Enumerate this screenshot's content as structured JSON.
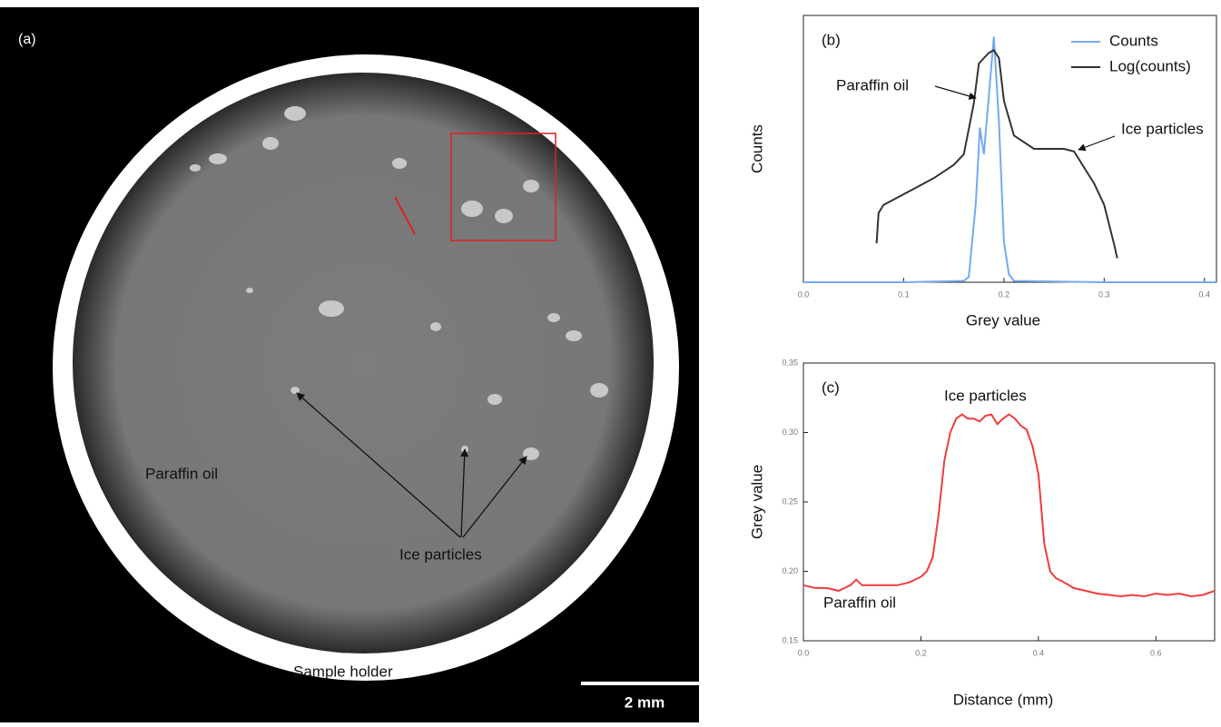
{
  "image_panel": {
    "panel_label": "(a)",
    "labels": [
      "Paraffin oil",
      "Ice particles",
      "Sample holder"
    ],
    "scale_bar": "2 mm"
  },
  "chart_data": [
    {
      "type": "line",
      "panel_label": "(b)",
      "xlabel": "Grey value",
      "ylabel": "Counts",
      "xlim": [
        0,
        0.412
      ],
      "ylim": [
        0,
        1
      ],
      "xticks": [
        {
          "value": 0,
          "label": "0.0"
        },
        0.1,
        0.2,
        0.3,
        0.4
      ],
      "legend": "upper right",
      "annotations": [
        "Paraffin oil",
        "Ice particles"
      ],
      "series": [
        {
          "name": "Counts",
          "color": "#74a9f0",
          "x": [
            0,
            0.1,
            0.16,
            0.165,
            0.172,
            0.176,
            0.18,
            0.185,
            0.19,
            0.195,
            0.2,
            0.205,
            0.21,
            0.3,
            0.412
          ],
          "values": [
            0,
            0,
            0.005,
            0.02,
            0.3,
            0.58,
            0.48,
            0.7,
            0.92,
            0.6,
            0.15,
            0.03,
            0.005,
            0,
            0
          ]
        },
        {
          "name": "Log(counts)",
          "color": "#333333",
          "x": [
            0.073,
            0.075,
            0.08,
            0.09,
            0.1,
            0.11,
            0.13,
            0.15,
            0.16,
            0.17,
            0.175,
            0.18,
            0.185,
            0.19,
            0.195,
            0.2,
            0.21,
            0.23,
            0.26,
            0.27,
            0.28,
            0.29,
            0.3,
            0.31,
            0.313
          ],
          "values": [
            0.146,
            0.26,
            0.29,
            0.31,
            0.33,
            0.35,
            0.39,
            0.44,
            0.48,
            0.67,
            0.82,
            0.84,
            0.86,
            0.87,
            0.84,
            0.68,
            0.55,
            0.5,
            0.5,
            0.49,
            0.43,
            0.37,
            0.29,
            0.14,
            0.09
          ]
        }
      ]
    },
    {
      "type": "line",
      "panel_label": "(c)",
      "xlabel": "Distance (mm)",
      "ylabel": "Grey value",
      "xlim": [
        0,
        0.7
      ],
      "ylim": [
        0.15,
        0.35
      ],
      "xticks": [
        {
          "value": 0,
          "label": "0.0"
        },
        0.2,
        0.4,
        0.6
      ],
      "yticks": [
        0.15,
        {
          "value": 0.2,
          "label": "0.20"
        },
        0.25,
        {
          "value": 0.3,
          "label": "0.30"
        },
        0.35
      ],
      "annotations": [
        "Ice particles",
        "Paraffin oil"
      ],
      "series": [
        {
          "name": "Grey value",
          "color": "#f03c3c",
          "x": [
            0,
            0.02,
            0.04,
            0.06,
            0.08,
            0.09,
            0.1,
            0.12,
            0.14,
            0.16,
            0.18,
            0.2,
            0.21,
            0.22,
            0.23,
            0.24,
            0.25,
            0.26,
            0.27,
            0.28,
            0.29,
            0.3,
            0.31,
            0.32,
            0.33,
            0.34,
            0.35,
            0.36,
            0.37,
            0.38,
            0.39,
            0.4,
            0.41,
            0.42,
            0.43,
            0.44,
            0.46,
            0.48,
            0.5,
            0.52,
            0.54,
            0.56,
            0.58,
            0.6,
            0.62,
            0.64,
            0.66,
            0.68,
            0.7
          ],
          "values": [
            0.19,
            0.188,
            0.188,
            0.186,
            0.19,
            0.194,
            0.19,
            0.19,
            0.19,
            0.19,
            0.192,
            0.196,
            0.2,
            0.21,
            0.24,
            0.28,
            0.3,
            0.31,
            0.313,
            0.31,
            0.31,
            0.308,
            0.312,
            0.313,
            0.306,
            0.31,
            0.313,
            0.31,
            0.305,
            0.302,
            0.29,
            0.27,
            0.22,
            0.2,
            0.195,
            0.193,
            0.188,
            0.186,
            0.184,
            0.183,
            0.182,
            0.183,
            0.182,
            0.184,
            0.183,
            0.184,
            0.182,
            0.183,
            0.186
          ]
        }
      ]
    }
  ]
}
